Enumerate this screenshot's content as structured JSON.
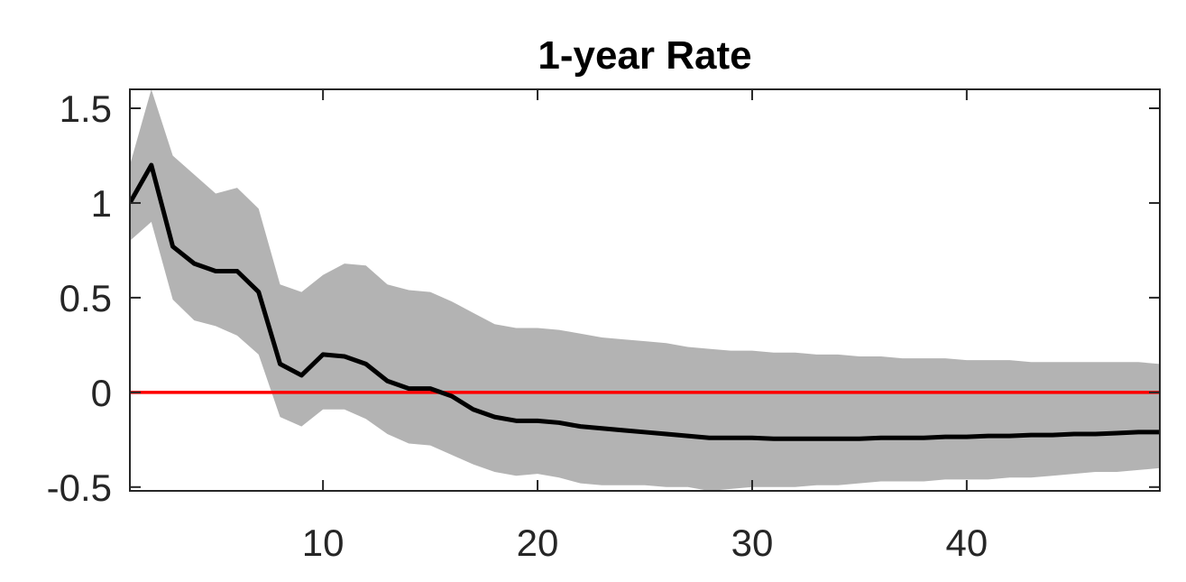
{
  "chart_data": {
    "type": "line",
    "title": "1-year Rate",
    "xlabel": "",
    "ylabel": "",
    "xlim": [
      1,
      49
    ],
    "ylim": [
      -0.52,
      1.6
    ],
    "xticks": [
      10,
      20,
      30,
      40
    ],
    "yticks": [
      -0.5,
      0,
      0.5,
      1,
      1.5
    ],
    "xtick_labels": [
      "10",
      "20",
      "30",
      "40"
    ],
    "ytick_labels": [
      "-0.5",
      "0",
      "0.5",
      "1",
      "1.5"
    ],
    "grid": false,
    "colors": {
      "band": "#b3b3b3",
      "line": "#000000",
      "zero_line": "#ff0000",
      "axes": "#262626"
    },
    "x": [
      1,
      2,
      3,
      4,
      5,
      6,
      7,
      8,
      9,
      10,
      11,
      12,
      13,
      14,
      15,
      16,
      17,
      18,
      19,
      20,
      21,
      22,
      23,
      24,
      25,
      26,
      27,
      28,
      29,
      30,
      31,
      32,
      33,
      34,
      35,
      36,
      37,
      38,
      39,
      40,
      41,
      42,
      43,
      44,
      45,
      46,
      47,
      48,
      49
    ],
    "series": [
      {
        "values": [
          1.0,
          1.2,
          0.77,
          0.68,
          0.64,
          0.64,
          0.53,
          0.15,
          0.09,
          0.2,
          0.19,
          0.15,
          0.06,
          0.02,
          0.02,
          -0.02,
          -0.09,
          -0.13,
          -0.15,
          -0.15,
          -0.16,
          -0.18,
          -0.19,
          -0.2,
          -0.21,
          -0.22,
          -0.23,
          -0.24,
          -0.24,
          -0.24,
          -0.245,
          -0.245,
          -0.245,
          -0.245,
          -0.245,
          -0.24,
          -0.24,
          -0.24,
          -0.235,
          -0.235,
          -0.23,
          -0.23,
          -0.225,
          -0.225,
          -0.22,
          -0.22,
          -0.215,
          -0.21,
          -0.21
        ]
      }
    ],
    "band": {
      "upper": [
        1.2,
        1.6,
        1.25,
        1.15,
        1.05,
        1.08,
        0.97,
        0.57,
        0.53,
        0.62,
        0.68,
        0.67,
        0.57,
        0.54,
        0.53,
        0.48,
        0.42,
        0.36,
        0.34,
        0.34,
        0.33,
        0.31,
        0.29,
        0.28,
        0.27,
        0.26,
        0.24,
        0.23,
        0.22,
        0.22,
        0.21,
        0.21,
        0.2,
        0.2,
        0.19,
        0.19,
        0.18,
        0.18,
        0.18,
        0.17,
        0.17,
        0.17,
        0.16,
        0.16,
        0.16,
        0.16,
        0.16,
        0.16,
        0.15
      ],
      "lower": [
        0.8,
        0.9,
        0.49,
        0.38,
        0.35,
        0.3,
        0.2,
        -0.13,
        -0.18,
        -0.09,
        -0.09,
        -0.14,
        -0.22,
        -0.27,
        -0.28,
        -0.33,
        -0.38,
        -0.42,
        -0.44,
        -0.43,
        -0.45,
        -0.48,
        -0.49,
        -0.49,
        -0.49,
        -0.5,
        -0.5,
        -0.52,
        -0.51,
        -0.5,
        -0.5,
        -0.5,
        -0.49,
        -0.49,
        -0.48,
        -0.47,
        -0.47,
        -0.47,
        -0.46,
        -0.46,
        -0.46,
        -0.45,
        -0.45,
        -0.44,
        -0.43,
        -0.42,
        -0.42,
        -0.41,
        -0.4
      ]
    },
    "reference_line": {
      "y": 0
    }
  }
}
